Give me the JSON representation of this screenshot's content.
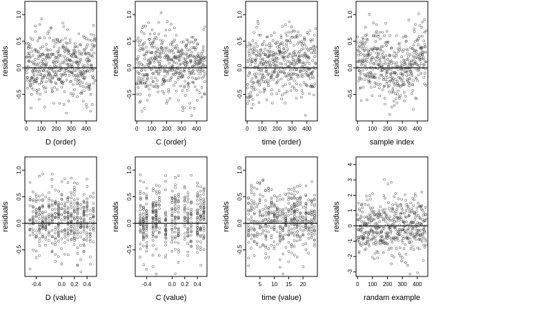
{
  "chart_data": [
    {
      "type": "scatter",
      "ylabel": "residuals",
      "xlabel": "D (order)",
      "xticks": [
        "0",
        "100",
        "200",
        "300",
        "400"
      ],
      "xtick_values": [
        0,
        100,
        200,
        300,
        400
      ],
      "xlim": [
        -10,
        470
      ],
      "yticks": [
        "-0.5",
        "0.0",
        "0.5",
        "1.0"
      ],
      "ytick_values": [
        -0.5,
        0,
        0.5,
        1.0
      ],
      "ylim": [
        -1.0,
        1.25
      ],
      "hline": 0,
      "n_points": 460,
      "points_style": "open-circles",
      "seed": 11,
      "trend": "none"
    },
    {
      "type": "scatter",
      "ylabel": "residuals",
      "xlabel": "C (order)",
      "xticks": [
        "0",
        "100",
        "200",
        "300",
        "400"
      ],
      "xtick_values": [
        0,
        100,
        200,
        300,
        400
      ],
      "xlim": [
        -10,
        470
      ],
      "yticks": [
        "-0.5",
        "0.0",
        "0.5",
        "1.0"
      ],
      "ytick_values": [
        -0.5,
        0,
        0.5,
        1.0
      ],
      "ylim": [
        -1.0,
        1.25
      ],
      "hline": 0,
      "n_points": 460,
      "points_style": "open-circles",
      "seed": 23,
      "trend": "none"
    },
    {
      "type": "scatter",
      "ylabel": "residuals",
      "xlabel": "time (order)",
      "xticks": [
        "0",
        "100",
        "200",
        "300",
        "400"
      ],
      "xtick_values": [
        0,
        100,
        200,
        300,
        400
      ],
      "xlim": [
        -10,
        470
      ],
      "yticks": [
        "-0.5",
        "0.0",
        "0.5",
        "1.0"
      ],
      "ytick_values": [
        -0.5,
        0,
        0.5,
        1.0
      ],
      "ylim": [
        -1.0,
        1.25
      ],
      "hline": 0,
      "n_points": 460,
      "points_style": "open-circles",
      "seed": 37,
      "trend": "rise-early"
    },
    {
      "type": "scatter",
      "ylabel": "residuals",
      "xlabel": "sample index",
      "xticks": [
        "0",
        "100",
        "200",
        "300",
        "400"
      ],
      "xtick_values": [
        0,
        100,
        200,
        300,
        400
      ],
      "xlim": [
        -10,
        470
      ],
      "yticks": [
        "-0.5",
        "0.0",
        "0.5",
        "1.0"
      ],
      "ytick_values": [
        -0.5,
        0,
        0.5,
        1.0
      ],
      "ylim": [
        -1.0,
        1.25
      ],
      "hline": 0,
      "n_points": 460,
      "points_style": "open-circles",
      "seed": 41,
      "trend": "wave"
    },
    {
      "type": "scatter",
      "ylabel": "residuals",
      "xlabel": "D (value)",
      "xticks": [
        "-0.4",
        "0.0",
        "0.2",
        "0.4"
      ],
      "xtick_values": [
        -0.4,
        0.0,
        0.2,
        0.4
      ],
      "xlim": [
        -0.58,
        0.55
      ],
      "yticks": [
        "-0.5",
        "0.0",
        "0.5",
        "1.0"
      ],
      "ytick_values": [
        -0.5,
        0,
        0.5,
        1.0
      ],
      "ylim": [
        -1.0,
        1.25
      ],
      "hline": 0,
      "n_points": 460,
      "points_style": "open-circles",
      "seed": 53,
      "x_levels": [
        -0.5,
        -0.45,
        -0.4,
        -0.35,
        -0.3,
        -0.25,
        -0.2,
        -0.15,
        -0.1,
        -0.05,
        0.0,
        0.05,
        0.1,
        0.15,
        0.2,
        0.25,
        0.3,
        0.35,
        0.4,
        0.45,
        0.5
      ]
    },
    {
      "type": "scatter",
      "ylabel": "residuals",
      "xlabel": "C (value)",
      "xticks": [
        "-0.4",
        "0.0",
        "0.2",
        "0.4"
      ],
      "xtick_values": [
        -0.4,
        0.0,
        0.2,
        0.4
      ],
      "xlim": [
        -0.58,
        0.55
      ],
      "yticks": [
        "-0.5",
        "0.0",
        "0.5",
        "1.0"
      ],
      "ytick_values": [
        -0.5,
        0,
        0.5,
        1.0
      ],
      "ylim": [
        -1.0,
        1.25
      ],
      "hline": 0,
      "n_points": 460,
      "points_style": "open-circles",
      "seed": 67,
      "x_levels": [
        -0.5,
        -0.45,
        -0.4,
        -0.3,
        -0.25,
        -0.2,
        -0.1,
        0.0,
        0.05,
        0.1,
        0.2,
        0.25,
        0.3,
        0.4,
        0.45,
        0.5
      ]
    },
    {
      "type": "scatter",
      "ylabel": "residuals",
      "xlabel": "time (value)",
      "xticks": [
        "5",
        "10",
        "15",
        "20"
      ],
      "xtick_values": [
        5,
        10,
        15,
        20
      ],
      "xlim": [
        0,
        25
      ],
      "yticks": [
        "-0.5",
        "0.0",
        "0.5",
        "1.0"
      ],
      "ytick_values": [
        -0.5,
        0,
        0.5,
        1.0
      ],
      "ylim": [
        -1.0,
        1.25
      ],
      "hline": 0,
      "n_points": 460,
      "points_style": "open-circles",
      "seed": 71,
      "x_levels": [
        1,
        2,
        3,
        4,
        5,
        6,
        7,
        8,
        9,
        10,
        11,
        12,
        13,
        14,
        15,
        16,
        17,
        18,
        19,
        20,
        21,
        22,
        23,
        24
      ]
    },
    {
      "type": "scatter",
      "ylabel": "residuals",
      "xlabel": "randam example",
      "xticks": [
        "0",
        "100",
        "200",
        "300",
        "400"
      ],
      "xtick_values": [
        0,
        100,
        200,
        300,
        400
      ],
      "xlim": [
        -10,
        470
      ],
      "yticks": [
        "-3",
        "-2",
        "-1",
        "0",
        "1",
        "2",
        "3",
        "4"
      ],
      "ytick_values": [
        -3,
        -2,
        -1,
        0,
        1,
        2,
        3,
        4
      ],
      "ylim": [
        -3.3,
        4.5
      ],
      "hline": 0,
      "n_points": 460,
      "points_style": "open-circles",
      "seed": 89,
      "trend": "none"
    }
  ]
}
